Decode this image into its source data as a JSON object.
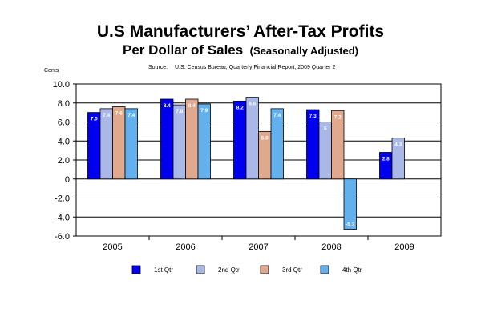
{
  "chart_data": {
    "type": "bar",
    "title": "U.S Manufacturers’ After-Tax Profits",
    "subtitle_main": "Per Dollar of Sales",
    "subtitle_note": "(Seasonally Adjusted)",
    "source_label": "Source:",
    "source_text": "U.S. Census Bureau, Quarterly Financial Report, 2009 Quarter 2",
    "ylabel": "Cents",
    "ylim": [
      -6,
      10
    ],
    "yticks": [
      "10.0",
      "8.0",
      "6.0",
      "4.0",
      "2.0",
      "0",
      "-2.0",
      "-4.0",
      "-6.0"
    ],
    "ytick_values": [
      10,
      8,
      6,
      4,
      2,
      0,
      -2,
      -4,
      -6
    ],
    "categories": [
      "2005",
      "2006",
      "2007",
      "2008",
      "2009"
    ],
    "grid": true,
    "legend_position": "bottom",
    "series": [
      {
        "name": "1st Qtr",
        "color": "#0000ee",
        "values": [
          7.0,
          8.4,
          8.2,
          7.3,
          2.8
        ],
        "labels": [
          "7.0",
          "8.4",
          "8.2",
          "7.3",
          "2.8"
        ]
      },
      {
        "name": "2nd Qtr",
        "color": "#a9b8e6",
        "values": [
          7.4,
          7.8,
          8.6,
          6.0,
          4.3
        ],
        "labels": [
          "7.4",
          "7.8",
          "8.6",
          "6",
          "4.3"
        ]
      },
      {
        "name": "3rd Qtr",
        "color": "#e0a88c",
        "values": [
          7.6,
          8.4,
          5.0,
          7.2,
          null
        ],
        "labels": [
          "7.6",
          "8.4",
          "5.0",
          "7.2",
          ""
        ]
      },
      {
        "name": "4th Qtr",
        "color": "#63b0ee",
        "values": [
          7.4,
          7.9,
          7.4,
          -5.3,
          null
        ],
        "labels": [
          "7.4",
          "7.9",
          "7.4",
          "-5.3",
          ""
        ]
      }
    ]
  }
}
